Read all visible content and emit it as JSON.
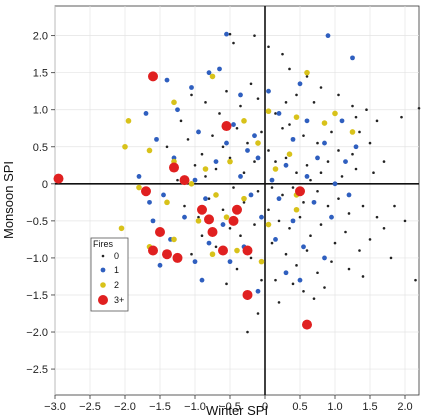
{
  "chart_data": {
    "type": "scatter",
    "xlabel": "Winter SPI",
    "ylabel": "Monsoon SPI",
    "xlim": [
      -3.0,
      2.2
    ],
    "ylim": [
      -2.85,
      2.4
    ],
    "x_ticks": [
      -3.0,
      -2.5,
      -2.0,
      -1.5,
      -1.0,
      -0.5,
      0,
      0.5,
      1.0,
      1.5,
      2.0
    ],
    "x_tick_labels": [
      "−3.0",
      "−2.5",
      "−2.0",
      "−1.5",
      "−1.0",
      "−0.5",
      "0",
      "0.5",
      "1.0",
      "1.5",
      "2.0"
    ],
    "y_ticks": [
      2.0,
      1.5,
      1.0,
      0.5,
      0,
      -0.5,
      -1.0,
      -1.5,
      -2.0,
      -2.5
    ],
    "y_tick_labels": [
      "2.0",
      "1.5",
      "1.0",
      "0.5",
      "0",
      "−0.5",
      "−1.0",
      "−1.5",
      "−2.0",
      "−2.5"
    ],
    "grid": true,
    "zero_lines": true,
    "legend": {
      "title": "Fires",
      "placement": "lower-left",
      "entries": [
        "0",
        "1",
        "2",
        "3+"
      ]
    },
    "series": [
      {
        "name": "0",
        "color": "#222222",
        "marker_radius": 1.3,
        "points": [
          [
            -0.5,
            2.02
          ],
          [
            -0.45,
            1.9
          ],
          [
            -0.15,
            2.0
          ],
          [
            0.05,
            1.85
          ],
          [
            0.25,
            1.75
          ],
          [
            0.35,
            1.55
          ],
          [
            0.45,
            1.2
          ],
          [
            0.6,
            1.45
          ],
          [
            0.7,
            1.1
          ],
          [
            0.8,
            1.3
          ],
          [
            1.05,
            1.2
          ],
          [
            1.25,
            1.05
          ],
          [
            1.45,
            1.0
          ],
          [
            1.6,
            0.85
          ],
          [
            1.95,
            0.9
          ],
          [
            2.2,
            1.02
          ],
          [
            0.15,
            0.95
          ],
          [
            0.25,
            0.75
          ],
          [
            0.35,
            0.8
          ],
          [
            0.55,
            0.65
          ],
          [
            0.75,
            0.55
          ],
          [
            0.95,
            0.7
          ],
          [
            1.05,
            0.45
          ],
          [
            1.25,
            0.4
          ],
          [
            1.35,
            0.7
          ],
          [
            1.5,
            0.55
          ],
          [
            1.7,
            0.3
          ],
          [
            0.05,
            0.45
          ],
          [
            0.15,
            0.3
          ],
          [
            0.3,
            0.35
          ],
          [
            0.45,
            0.15
          ],
          [
            0.6,
            0.25
          ],
          [
            0.8,
            0.15
          ],
          [
            0.9,
            0.3
          ],
          [
            1.1,
            0.1
          ],
          [
            1.3,
            0.2
          ],
          [
            1.55,
            0.15
          ],
          [
            0.1,
            -0.05
          ],
          [
            0.25,
            -0.15
          ],
          [
            0.4,
            -0.05
          ],
          [
            0.55,
            -0.25
          ],
          [
            0.75,
            -0.1
          ],
          [
            0.9,
            -0.3
          ],
          [
            1.05,
            -0.2
          ],
          [
            1.2,
            -0.4
          ],
          [
            1.4,
            -0.3
          ],
          [
            1.6,
            -0.45
          ],
          [
            1.85,
            -0.3
          ],
          [
            2.0,
            -0.5
          ],
          [
            0.05,
            -0.35
          ],
          [
            0.2,
            -0.5
          ],
          [
            0.35,
            -0.6
          ],
          [
            0.5,
            -0.45
          ],
          [
            0.65,
            -0.7
          ],
          [
            0.8,
            -0.55
          ],
          [
            1.0,
            -0.8
          ],
          [
            1.15,
            -0.65
          ],
          [
            1.35,
            -0.9
          ],
          [
            1.5,
            -0.75
          ],
          [
            1.8,
            -1.0
          ],
          [
            0.1,
            -0.8
          ],
          [
            0.3,
            -0.95
          ],
          [
            0.45,
            -1.1
          ],
          [
            0.6,
            -0.9
          ],
          [
            0.75,
            -1.2
          ],
          [
            0.95,
            -1.05
          ],
          [
            1.2,
            -1.15
          ],
          [
            1.4,
            -1.25
          ],
          [
            2.15,
            -1.3
          ],
          [
            0.15,
            -1.3
          ],
          [
            0.4,
            -1.35
          ],
          [
            0.55,
            -1.45
          ],
          [
            0.7,
            -1.55
          ],
          [
            0.85,
            -1.4
          ],
          [
            0.2,
            -1.6
          ],
          [
            -0.1,
            1.15
          ],
          [
            -0.2,
            1.35
          ],
          [
            -0.35,
            1.05
          ],
          [
            -0.55,
            1.25
          ],
          [
            -0.65,
            0.95
          ],
          [
            -0.85,
            1.1
          ],
          [
            -1.05,
            1.2
          ],
          [
            -1.2,
            0.85
          ],
          [
            -0.05,
            0.7
          ],
          [
            -0.25,
            0.55
          ],
          [
            -0.4,
            0.75
          ],
          [
            -0.6,
            0.5
          ],
          [
            -0.75,
            0.65
          ],
          [
            -0.9,
            0.4
          ],
          [
            -1.1,
            0.6
          ],
          [
            -1.4,
            0.5
          ],
          [
            -0.15,
            0.3
          ],
          [
            -0.3,
            0.15
          ],
          [
            -0.5,
            0.35
          ],
          [
            -0.7,
            0.2
          ],
          [
            -0.85,
            0.1
          ],
          [
            -1.0,
            0.25
          ],
          [
            -1.25,
            0.05
          ],
          [
            -0.1,
            -0.1
          ],
          [
            -0.3,
            -0.25
          ],
          [
            -0.45,
            -0.05
          ],
          [
            -0.6,
            -0.35
          ],
          [
            -0.8,
            -0.2
          ],
          [
            -0.95,
            -0.45
          ],
          [
            -1.15,
            -0.3
          ],
          [
            -0.15,
            -0.55
          ],
          [
            -0.35,
            -0.7
          ],
          [
            -0.5,
            -0.6
          ],
          [
            -0.7,
            -0.85
          ],
          [
            -0.9,
            -0.7
          ],
          [
            -1.05,
            -0.95
          ],
          [
            -0.2,
            -1.0
          ],
          [
            -0.4,
            -1.15
          ],
          [
            -0.55,
            -1.35
          ],
          [
            -0.25,
            -1.55
          ],
          [
            -0.1,
            -1.75
          ],
          [
            -0.25,
            -2.0
          ],
          [
            -0.05,
            -1.3
          ],
          [
            0.3,
            1.1
          ],
          [
            1.3,
            0.9
          ],
          [
            0.65,
            0.05
          ],
          [
            1.7,
            -0.6
          ]
        ]
      },
      {
        "name": "1",
        "color": "#2f5fbf",
        "marker_radius": 2.4,
        "points": [
          [
            -0.55,
            2.02
          ],
          [
            -1.4,
            1.4
          ],
          [
            -0.8,
            1.5
          ],
          [
            -0.65,
            1.55
          ],
          [
            0.9,
            2.0
          ],
          [
            1.25,
            1.7
          ],
          [
            -1.05,
            1.3
          ],
          [
            -0.35,
            1.2
          ],
          [
            0.05,
            1.25
          ],
          [
            0.5,
            1.35
          ],
          [
            -1.7,
            0.95
          ],
          [
            -1.25,
            1.0
          ],
          [
            -0.45,
            0.8
          ],
          [
            0.2,
            0.95
          ],
          [
            0.6,
            0.85
          ],
          [
            1.1,
            0.85
          ],
          [
            -1.55,
            0.6
          ],
          [
            -0.95,
            0.7
          ],
          [
            -0.55,
            0.55
          ],
          [
            -0.15,
            0.65
          ],
          [
            0.4,
            0.6
          ],
          [
            0.85,
            0.55
          ],
          [
            1.3,
            0.5
          ],
          [
            -1.3,
            0.35
          ],
          [
            -0.7,
            0.3
          ],
          [
            -0.1,
            0.35
          ],
          [
            0.3,
            0.25
          ],
          [
            0.75,
            0.35
          ],
          [
            1.15,
            0.3
          ],
          [
            -1.8,
            0.1
          ],
          [
            -1.0,
            0.05
          ],
          [
            -0.35,
            0.1
          ],
          [
            0.1,
            0.05
          ],
          [
            0.6,
            0.1
          ],
          [
            1.0,
            0.0
          ],
          [
            -1.45,
            -0.15
          ],
          [
            -0.85,
            -0.2
          ],
          [
            -0.2,
            -0.15
          ],
          [
            0.2,
            -0.2
          ],
          [
            0.7,
            -0.25
          ],
          [
            1.2,
            -0.15
          ],
          [
            -1.6,
            -0.5
          ],
          [
            -1.15,
            -0.45
          ],
          [
            -0.6,
            -0.55
          ],
          [
            -0.05,
            -0.45
          ],
          [
            0.4,
            -0.5
          ],
          [
            0.95,
            -0.45
          ],
          [
            -1.35,
            -0.75
          ],
          [
            -0.8,
            -0.8
          ],
          [
            -0.3,
            -0.85
          ],
          [
            0.15,
            -0.75
          ],
          [
            0.55,
            -0.85
          ],
          [
            -1.5,
            -1.1
          ],
          [
            -1.0,
            -1.05
          ],
          [
            -0.5,
            -1.05
          ],
          [
            0.3,
            -1.2
          ],
          [
            -0.9,
            -1.3
          ],
          [
            -0.1,
            -1.45
          ],
          [
            0.5,
            -1.3
          ],
          [
            -1.65,
            -0.25
          ],
          [
            0.85,
            -1.0
          ],
          [
            -0.25,
            0.45
          ]
        ]
      },
      {
        "name": "2",
        "color": "#d8c21a",
        "marker_radius": 2.8,
        "points": [
          [
            -0.75,
            1.45
          ],
          [
            0.6,
            1.5
          ],
          [
            -1.3,
            1.1
          ],
          [
            0.05,
            0.98
          ],
          [
            0.45,
            0.9
          ],
          [
            -1.95,
            0.85
          ],
          [
            -0.3,
            0.85
          ],
          [
            0.85,
            0.82
          ],
          [
            1.0,
            0.95
          ],
          [
            -1.65,
            0.45
          ],
          [
            -0.1,
            0.55
          ],
          [
            1.25,
            0.7
          ],
          [
            -1.3,
            0.3
          ],
          [
            -0.5,
            0.3
          ],
          [
            0.35,
            0.4
          ],
          [
            -2.0,
            0.5
          ],
          [
            -0.85,
            0.2
          ],
          [
            0.15,
            0.2
          ],
          [
            -1.05,
            0.0
          ],
          [
            -0.7,
            -0.15
          ],
          [
            -0.3,
            -0.2
          ],
          [
            0.45,
            -0.15
          ],
          [
            -1.8,
            -0.05
          ],
          [
            -1.4,
            -0.25
          ],
          [
            -0.95,
            -0.5
          ],
          [
            -0.55,
            -0.45
          ],
          [
            0.05,
            -0.55
          ],
          [
            -1.65,
            -0.85
          ],
          [
            -1.3,
            -0.75
          ],
          [
            -0.75,
            -0.95
          ],
          [
            -0.4,
            -0.9
          ],
          [
            -2.05,
            -0.6
          ],
          [
            0.45,
            -0.35
          ],
          [
            -0.05,
            -1.05
          ]
        ]
      },
      {
        "name": "3+",
        "color": "#e02020",
        "marker_radius": 5.0,
        "points": [
          [
            -2.95,
            0.07
          ],
          [
            -1.6,
            1.45
          ],
          [
            -0.55,
            0.78
          ],
          [
            -1.3,
            0.22
          ],
          [
            -1.15,
            0.05
          ],
          [
            -1.7,
            -0.1
          ],
          [
            -0.9,
            -0.35
          ],
          [
            -0.4,
            -0.35
          ],
          [
            -0.8,
            -0.48
          ],
          [
            -0.75,
            -0.65
          ],
          [
            -0.45,
            -0.5
          ],
          [
            -1.5,
            -0.65
          ],
          [
            -1.6,
            -0.9
          ],
          [
            -1.4,
            -0.95
          ],
          [
            -1.25,
            -1.0
          ],
          [
            -0.6,
            -0.9
          ],
          [
            -0.25,
            -0.9
          ],
          [
            -0.25,
            -1.5
          ],
          [
            0.5,
            -0.1
          ],
          [
            0.6,
            -1.9
          ]
        ]
      }
    ]
  }
}
